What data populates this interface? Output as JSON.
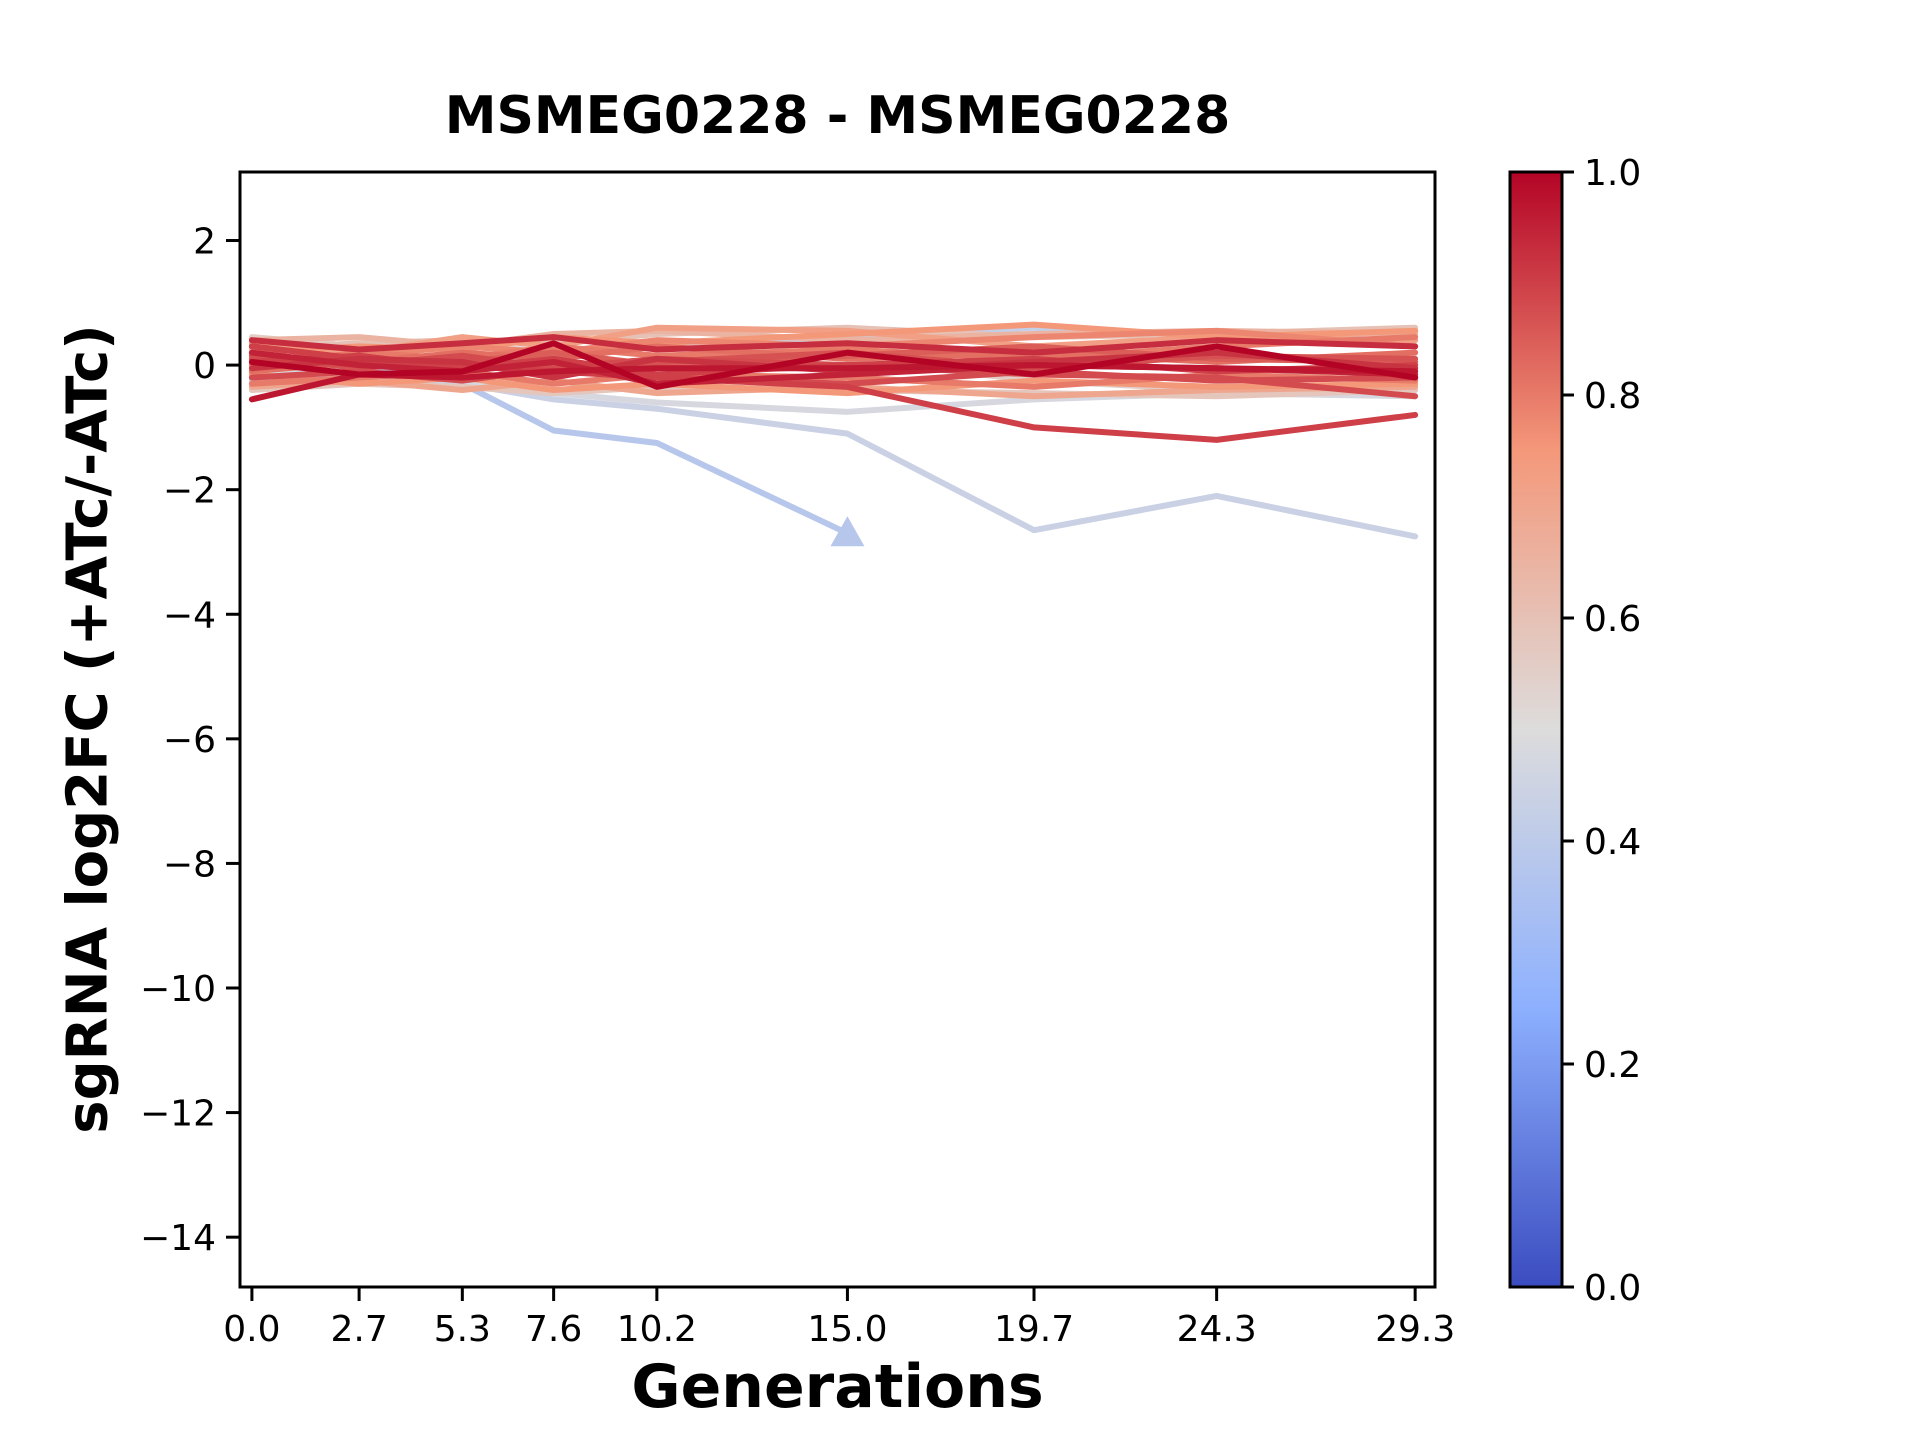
{
  "chart_data": {
    "type": "line",
    "title": "MSMEG0228 - MSMEG0228",
    "xlabel": "Generations",
    "ylabel": "sgRNA log2FC (+ATc/-ATc)",
    "x": [
      0.0,
      2.7,
      5.3,
      7.6,
      10.2,
      15.0,
      19.7,
      24.3,
      29.3
    ],
    "xtick_labels": [
      "0.0",
      "2.7",
      "5.3",
      "7.6",
      "10.2",
      "15.0",
      "19.7",
      "24.3",
      "29.3"
    ],
    "yticks": [
      2,
      0,
      -2,
      -4,
      -6,
      -8,
      -10,
      -12,
      -14
    ],
    "ytick_labels": [
      "2",
      "0",
      "−2",
      "−4",
      "−6",
      "−8",
      "−10",
      "−12",
      "−14"
    ],
    "xlim": [
      -0.3,
      29.8
    ],
    "ylim": [
      -14.8,
      3.1
    ],
    "grid": false,
    "legend": "none",
    "colormap": {
      "name": "coolwarm",
      "stops": [
        [
          0.0,
          "#3B4CC0"
        ],
        [
          0.25,
          "#8DB0FE"
        ],
        [
          0.5,
          "#DDDCDC"
        ],
        [
          0.75,
          "#F4987A"
        ],
        [
          1.0,
          "#B40426"
        ]
      ]
    },
    "colorbar": {
      "vmin": 0.0,
      "vmax": 1.0,
      "tick_values": [
        1.0,
        0.8,
        0.6,
        0.4,
        0.2,
        0.0
      ],
      "tick_labels": [
        "1.0",
        "0.8",
        "0.6",
        "0.4",
        "0.2",
        "0.0"
      ],
      "position": "right"
    },
    "series": [
      {
        "color_value": 0.38,
        "y": [
          -0.2,
          -0.25,
          -0.3,
          -1.05,
          -1.25,
          -2.7
        ],
        "end_marker": "triangle-up"
      },
      {
        "color_value": 0.44,
        "y": [
          -0.15,
          -0.2,
          -0.3,
          -0.55,
          -0.7,
          -1.1,
          -2.65,
          -2.1,
          -2.75
        ]
      },
      {
        "color_value": 0.48,
        "y": [
          -0.1,
          -0.15,
          -0.25,
          -0.45,
          -0.6,
          -0.75,
          -0.55,
          -0.45,
          -0.5
        ]
      },
      {
        "color_value": 0.42,
        "y": [
          -0.25,
          -0.15,
          0.05,
          0.15,
          0.35,
          0.45,
          0.6,
          0.4,
          0.55
        ]
      },
      {
        "color_value": 0.55,
        "y": [
          0.45,
          0.3,
          0.35,
          0.2,
          0.35,
          0.1,
          -0.25,
          -0.4,
          -0.3
        ]
      },
      {
        "color_value": 1.0,
        "y": [
          0.05,
          -0.15,
          -0.1,
          0.35,
          -0.35,
          0.2,
          -0.15,
          0.3,
          -0.2
        ]
      },
      {
        "color_value": 0.97,
        "y": [
          -0.55,
          -0.15,
          -0.2,
          -0.1,
          -0.05,
          -0.05,
          0.0,
          -0.05,
          -0.1
        ]
      },
      {
        "color_value": 0.9,
        "y": [
          0.3,
          0.1,
          0.0,
          -0.1,
          -0.2,
          -0.35,
          -1.0,
          -1.2,
          -0.8
        ]
      },
      {
        "color_value": 0.88,
        "y": [
          0.1,
          0.0,
          0.15,
          -0.05,
          0.1,
          0.0,
          -0.15,
          -0.2,
          -0.5
        ]
      },
      {
        "color_value": 0.72,
        "y": [
          0.35,
          0.2,
          0.45,
          0.3,
          0.6,
          0.55,
          0.3,
          0.45,
          0.4
        ]
      },
      {
        "color_value": 0.75,
        "y": [
          0.2,
          0.3,
          0.25,
          0.45,
          0.35,
          0.5,
          0.65,
          0.45,
          0.55
        ]
      },
      {
        "color_value": 0.78,
        "y": [
          0.1,
          0.15,
          0.3,
          0.2,
          0.4,
          0.3,
          0.45,
          0.55,
          0.3
        ]
      },
      {
        "color_value": 0.8,
        "y": [
          0.0,
          0.2,
          0.1,
          0.3,
          0.15,
          0.25,
          0.1,
          0.3,
          0.45
        ]
      },
      {
        "color_value": 0.82,
        "y": [
          -0.1,
          0.05,
          0.2,
          0.1,
          0.3,
          0.1,
          0.2,
          0.05,
          0.2
        ]
      },
      {
        "color_value": 0.85,
        "y": [
          0.3,
          0.1,
          0.05,
          0.2,
          0.0,
          0.15,
          0.3,
          0.1,
          0.05
        ]
      },
      {
        "color_value": 0.87,
        "y": [
          0.15,
          -0.05,
          0.1,
          -0.1,
          0.05,
          0.2,
          -0.05,
          0.15,
          0.1
        ]
      },
      {
        "color_value": 0.9,
        "y": [
          0.05,
          0.15,
          -0.05,
          0.1,
          -0.15,
          0.0,
          0.1,
          -0.1,
          0.0
        ]
      },
      {
        "color_value": 0.92,
        "y": [
          -0.05,
          0.1,
          0.05,
          -0.2,
          0.1,
          -0.1,
          0.05,
          0.2,
          -0.05
        ]
      },
      {
        "color_value": 0.95,
        "y": [
          0.2,
          0.0,
          -0.1,
          0.05,
          -0.3,
          -0.15,
          0.0,
          -0.05,
          -0.15
        ]
      },
      {
        "color_value": 0.88,
        "y": [
          -0.2,
          -0.1,
          -0.25,
          -0.05,
          -0.2,
          -0.3,
          -0.1,
          -0.25,
          -0.2
        ]
      },
      {
        "color_value": 0.8,
        "y": [
          -0.3,
          -0.2,
          -0.1,
          -0.3,
          -0.15,
          -0.2,
          -0.35,
          -0.15,
          -0.25
        ]
      },
      {
        "color_value": 0.75,
        "y": [
          -0.15,
          -0.3,
          -0.2,
          -0.4,
          -0.3,
          -0.45,
          -0.25,
          -0.35,
          -0.3
        ]
      },
      {
        "color_value": 0.7,
        "y": [
          -0.35,
          -0.25,
          -0.4,
          -0.25,
          -0.45,
          -0.35,
          -0.5,
          -0.4,
          -0.35
        ]
      },
      {
        "color_value": 0.65,
        "y": [
          0.4,
          0.45,
          0.3,
          0.5,
          0.55,
          0.4,
          0.5,
          0.55,
          0.5
        ]
      },
      {
        "color_value": 0.6,
        "y": [
          0.25,
          0.35,
          0.4,
          0.35,
          0.5,
          0.6,
          0.45,
          0.5,
          0.6
        ]
      },
      {
        "color_value": 0.58,
        "y": [
          -0.4,
          -0.3,
          -0.35,
          -0.45,
          -0.35,
          -0.4,
          -0.45,
          -0.5,
          -0.4
        ]
      },
      {
        "color_value": 0.93,
        "y": [
          0.4,
          0.25,
          0.35,
          0.45,
          0.25,
          0.35,
          0.2,
          0.4,
          0.3
        ]
      }
    ]
  }
}
